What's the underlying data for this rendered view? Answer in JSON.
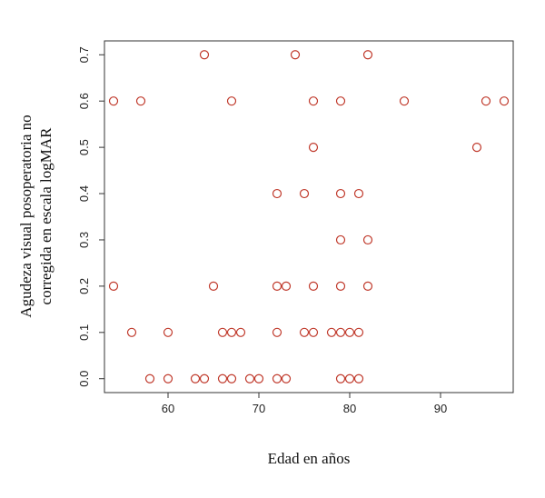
{
  "chart_data": {
    "type": "scatter",
    "xlabel": "Edad en años",
    "ylabel_lines": [
      "Agudeza visual posoperatoria no",
      "corregida en escala logMAR"
    ],
    "xlim": [
      53,
      98
    ],
    "ylim": [
      -0.03,
      0.73
    ],
    "x_ticks": [
      60,
      70,
      80,
      90
    ],
    "y_ticks": [
      0.0,
      0.1,
      0.2,
      0.3,
      0.4,
      0.5,
      0.6,
      0.7
    ],
    "x_tick_labels": [
      "60",
      "70",
      "80",
      "90"
    ],
    "y_tick_labels": [
      "0.0",
      "0.1",
      "0.2",
      "0.3",
      "0.4",
      "0.5",
      "0.6",
      "0.7"
    ],
    "grid": false,
    "marker": "open-circle",
    "marker_color": "#c0392b",
    "points": [
      {
        "x": 64,
        "y": 0.7
      },
      {
        "x": 74,
        "y": 0.7
      },
      {
        "x": 82,
        "y": 0.7
      },
      {
        "x": 54,
        "y": 0.6
      },
      {
        "x": 57,
        "y": 0.6
      },
      {
        "x": 67,
        "y": 0.6
      },
      {
        "x": 76,
        "y": 0.6
      },
      {
        "x": 79,
        "y": 0.6
      },
      {
        "x": 86,
        "y": 0.6
      },
      {
        "x": 95,
        "y": 0.6
      },
      {
        "x": 97,
        "y": 0.6
      },
      {
        "x": 76,
        "y": 0.5
      },
      {
        "x": 94,
        "y": 0.5
      },
      {
        "x": 72,
        "y": 0.4
      },
      {
        "x": 75,
        "y": 0.4
      },
      {
        "x": 79,
        "y": 0.4
      },
      {
        "x": 81,
        "y": 0.4
      },
      {
        "x": 79,
        "y": 0.3
      },
      {
        "x": 82,
        "y": 0.3
      },
      {
        "x": 54,
        "y": 0.2
      },
      {
        "x": 65,
        "y": 0.2
      },
      {
        "x": 72,
        "y": 0.2
      },
      {
        "x": 73,
        "y": 0.2
      },
      {
        "x": 76,
        "y": 0.2
      },
      {
        "x": 79,
        "y": 0.2
      },
      {
        "x": 82,
        "y": 0.2
      },
      {
        "x": 56,
        "y": 0.1
      },
      {
        "x": 60,
        "y": 0.1
      },
      {
        "x": 66,
        "y": 0.1
      },
      {
        "x": 67,
        "y": 0.1
      },
      {
        "x": 68,
        "y": 0.1
      },
      {
        "x": 72,
        "y": 0.1
      },
      {
        "x": 75,
        "y": 0.1
      },
      {
        "x": 76,
        "y": 0.1
      },
      {
        "x": 78,
        "y": 0.1
      },
      {
        "x": 79,
        "y": 0.1
      },
      {
        "x": 80,
        "y": 0.1
      },
      {
        "x": 81,
        "y": 0.1
      },
      {
        "x": 58,
        "y": 0.0
      },
      {
        "x": 60,
        "y": 0.0
      },
      {
        "x": 63,
        "y": 0.0
      },
      {
        "x": 64,
        "y": 0.0
      },
      {
        "x": 66,
        "y": 0.0
      },
      {
        "x": 67,
        "y": 0.0
      },
      {
        "x": 69,
        "y": 0.0
      },
      {
        "x": 70,
        "y": 0.0
      },
      {
        "x": 72,
        "y": 0.0
      },
      {
        "x": 73,
        "y": 0.0
      },
      {
        "x": 79,
        "y": 0.0
      },
      {
        "x": 80,
        "y": 0.0
      },
      {
        "x": 81,
        "y": 0.0
      }
    ]
  }
}
